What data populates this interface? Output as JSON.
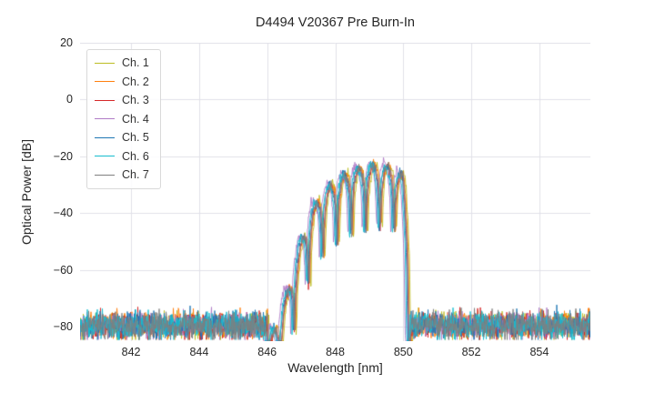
{
  "chart_data": {
    "type": "line",
    "title": "D4494 V20367 Pre Burn-In",
    "xlabel": "Wavelength [nm]",
    "ylabel": "Optical Power [dB]",
    "xlim": [
      840.5,
      855.5
    ],
    "ylim": [
      -85,
      20
    ],
    "xticks": [
      842,
      844,
      846,
      848,
      850,
      852,
      854
    ],
    "yticks": [
      -80,
      -60,
      -40,
      -20,
      0,
      20
    ],
    "grid": true,
    "grid_color": "#e1e1e8",
    "background": "#ffffff",
    "text_color": "#262626",
    "legend_position": "upper-left",
    "series": [
      {
        "name": "Ch. 1",
        "color": "#bcbd22",
        "x_offset_nm": 0.06,
        "y_offset_db": 0.3
      },
      {
        "name": "Ch. 2",
        "color": "#ff7f0e",
        "x_offset_nm": 0.03,
        "y_offset_db": 0.2
      },
      {
        "name": "Ch. 3",
        "color": "#d62728",
        "x_offset_nm": 0.0,
        "y_offset_db": -0.3
      },
      {
        "name": "Ch. 4",
        "color": "#b07cc6",
        "x_offset_nm": -0.1,
        "y_offset_db": 0.8
      },
      {
        "name": "Ch. 5",
        "color": "#1f77b4",
        "x_offset_nm": -0.03,
        "y_offset_db": 0.4
      },
      {
        "name": "Ch. 6",
        "color": "#17becf",
        "x_offset_nm": -0.06,
        "y_offset_db": -0.2
      },
      {
        "name": "Ch. 7",
        "color": "#7f7f7f",
        "x_offset_nm": 0.01,
        "y_offset_db": 0.0
      }
    ],
    "noise_floor": {
      "mean_db": -79.5,
      "sigma_db": 2.4,
      "min_db": -84.5,
      "max_db": -71.5
    },
    "signal": {
      "band_start_nm": 846.0,
      "band_stop_nm": 850.22,
      "envelope_x_nm": [
        846.0,
        846.3,
        846.65,
        847.0,
        847.35,
        847.7,
        848.1,
        848.5,
        848.9,
        849.3,
        849.7,
        850.0,
        850.12,
        850.22
      ],
      "envelope_y_db": [
        -86,
        -78,
        -66,
        -50,
        -38,
        -32,
        -28,
        -25,
        -23.5,
        -23,
        -24,
        -27,
        -45,
        -86
      ],
      "lobe_center_nm": 848.9,
      "lobe_period_nm": 0.42,
      "lobe_notch_depth_db": 22,
      "peak_power_db": -23,
      "ripple_sigma_db": 0.9
    }
  }
}
